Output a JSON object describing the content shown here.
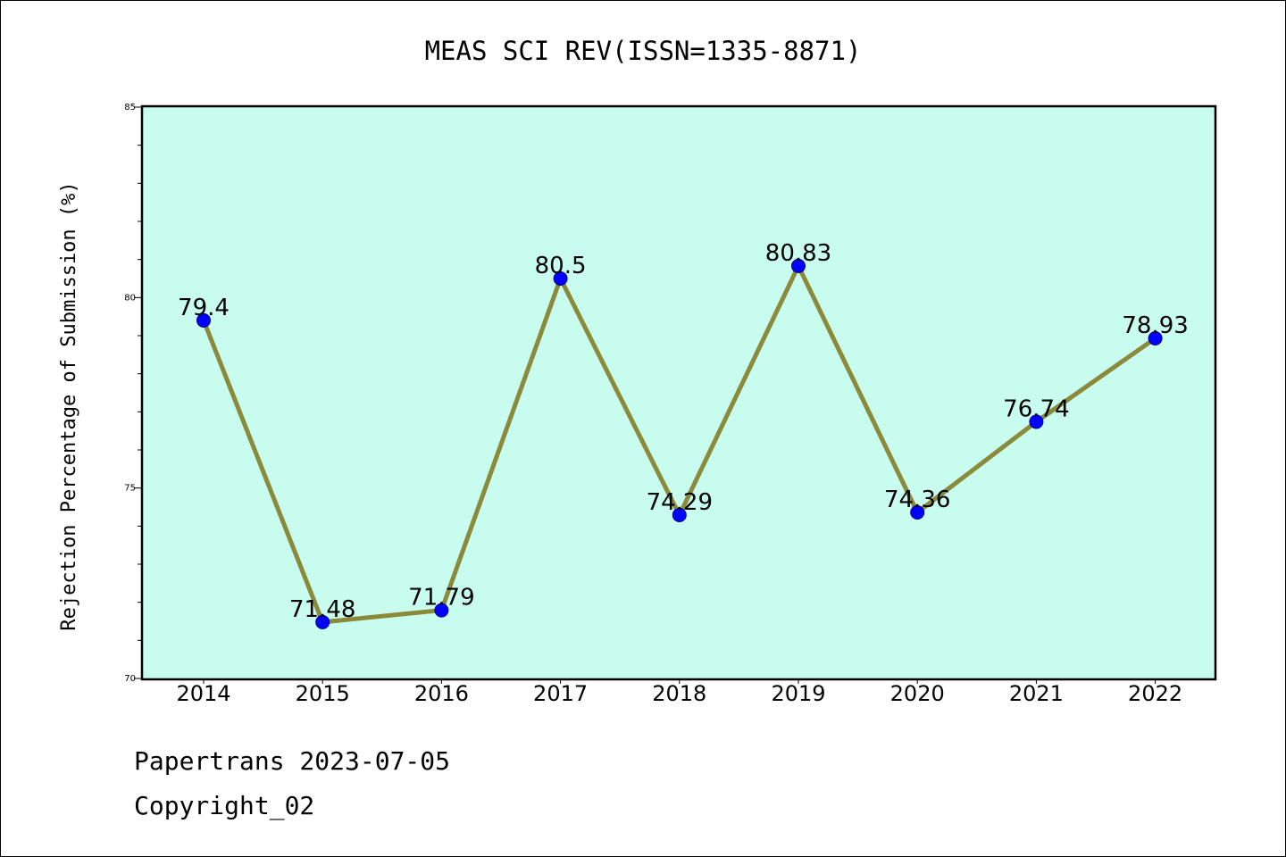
{
  "chart_data": {
    "type": "line",
    "title": "MEAS SCI REV(ISSN=1335-8871)",
    "xlabel": "",
    "ylabel": "Rejection Percentage of Submission (%)",
    "categories": [
      "2014",
      "2015",
      "2016",
      "2017",
      "2018",
      "2019",
      "2020",
      "2021",
      "2022"
    ],
    "values": [
      79.4,
      71.48,
      71.79,
      80.5,
      74.29,
      80.83,
      74.36,
      76.74,
      78.93
    ],
    "data_labels": [
      "79.4",
      "71.48",
      "71.79",
      "80.5",
      "74.29",
      "80.83",
      "74.36",
      "76.74",
      "78.93"
    ],
    "ylim": [
      70,
      85
    ],
    "yticks": [
      "70",
      "75",
      "80",
      "85"
    ],
    "grid": false,
    "legend": "none",
    "colors": {
      "plot_background": "#c8fcee",
      "line": "#8b8a3a",
      "marker": "#0000ff",
      "marker_edge": "#00008b"
    }
  },
  "footer": {
    "date_text": "Papertrans 2023-07-05",
    "copyright_text": "Copyright_02"
  }
}
